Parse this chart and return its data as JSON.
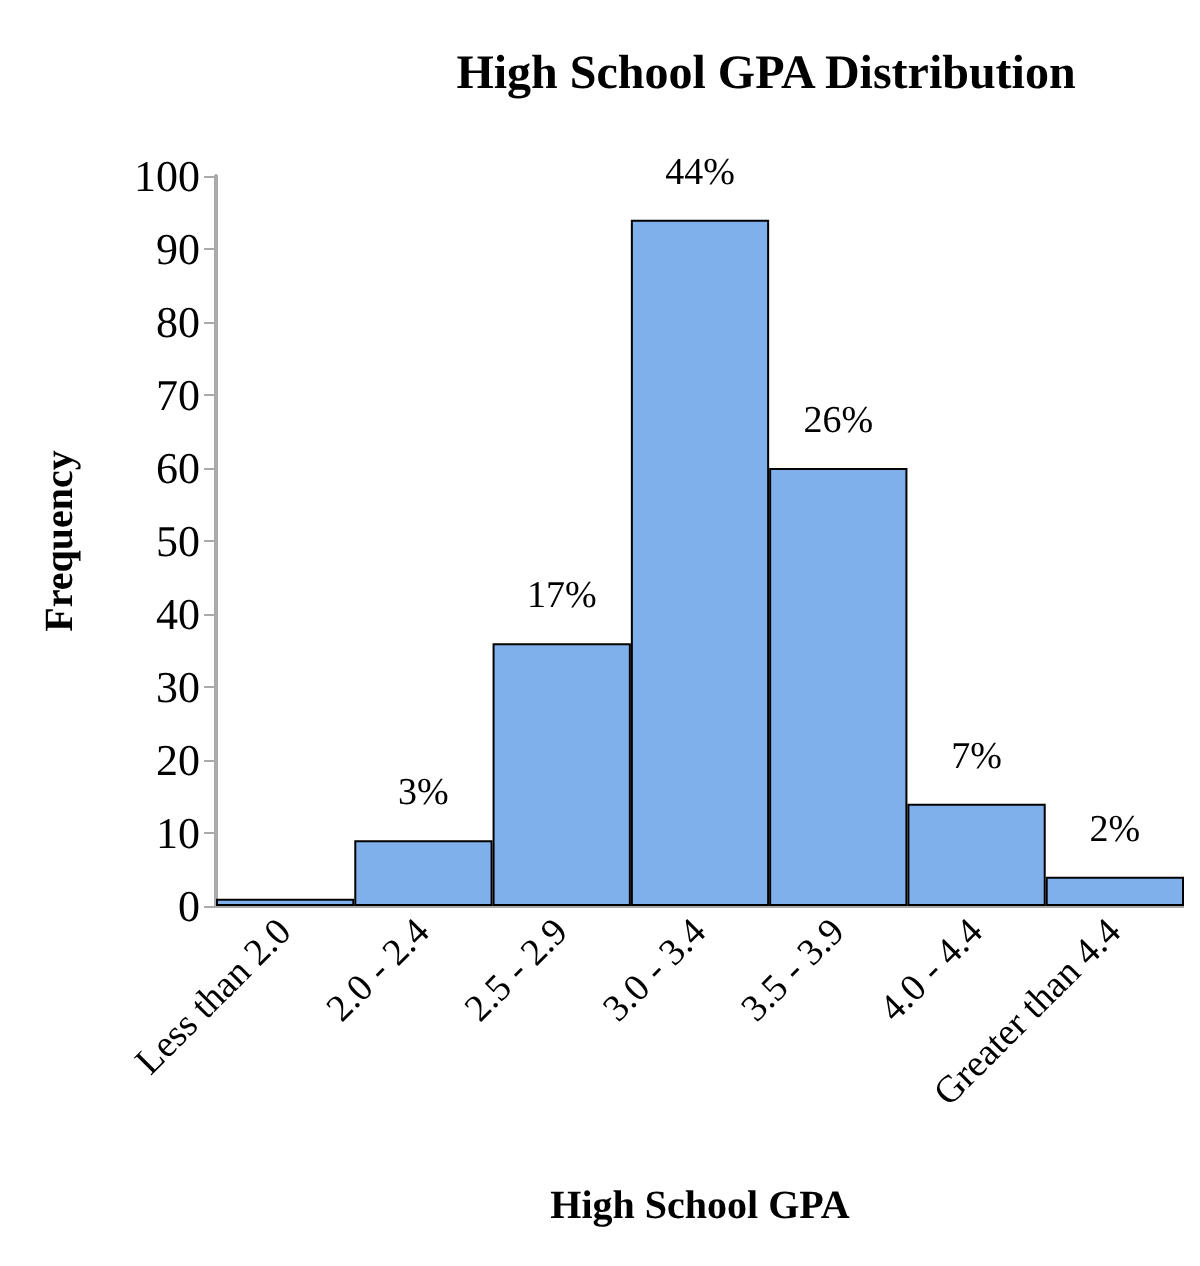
{
  "chart_data": {
    "type": "bar",
    "title": "High School GPA Distribution",
    "xlabel": "High School GPA",
    "ylabel": "Frequency",
    "categories": [
      "Less than 2.0",
      "2.0 - 2.4",
      "2.5 - 2.9",
      "3.0 - 3.4",
      "3.5 - 3.9",
      "4.0 - 4.4",
      "Greater than 4.4"
    ],
    "values": [
      1,
      9,
      36,
      94,
      60,
      14,
      4
    ],
    "annotations": [
      {
        "text": "3%",
        "x": "2.0 - 2.4",
        "y": 9
      },
      {
        "text": "17%",
        "x": "2.5 - 2.9",
        "y": 36
      },
      {
        "text": "44%",
        "x": "3.0 - 3.4",
        "y": 94
      },
      {
        "text": "26%",
        "x": "3.5 - 3.9",
        "y": 60
      },
      {
        "text": "7%",
        "x": "4.0 - 4.4",
        "y": 14
      },
      {
        "text": "2%",
        "x": "Greater than 4.4",
        "y": 4
      }
    ],
    "color": "#7fb0ec",
    "ylim": [
      0,
      100
    ],
    "yticks": [
      0,
      10,
      20,
      30,
      40,
      50,
      60,
      70,
      80,
      90,
      100
    ],
    "grid": false
  }
}
